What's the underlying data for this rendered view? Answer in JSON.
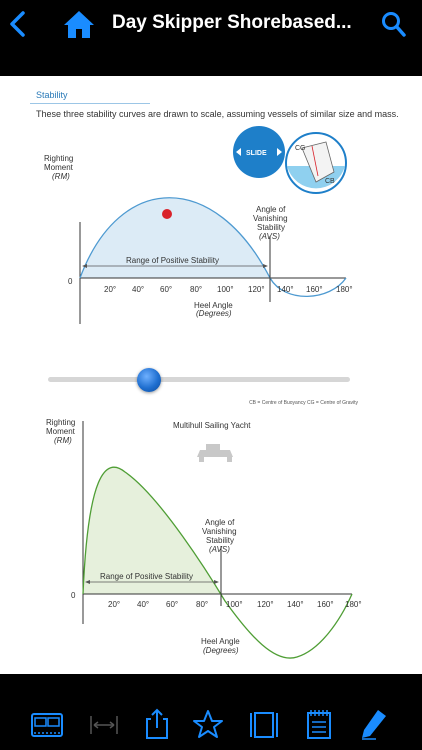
{
  "header": {
    "title": "Day Skipper Shorebased...",
    "back_icon": "chevron-left-icon",
    "home_icon": "home-icon",
    "search_icon": "search-icon",
    "accent": "#1a8cff"
  },
  "page": {
    "section_title": "Stability",
    "intro": "These three stability curves are drawn to scale, assuming vessels of similar size and mass."
  },
  "chart_top": {
    "y_label": "Righting",
    "y_label2": "Moment",
    "y_unit": "(RM)",
    "zero": "0",
    "x_ticks": [
      "20°",
      "40°",
      "60°",
      "80°",
      "100°",
      "120°",
      "140°",
      "160°",
      "180°"
    ],
    "x_label": "Heel Angle",
    "x_unit": "(Degrees)",
    "range_label": "Range of Positive Stability",
    "avs_label1": "Angle of",
    "avs_label2": "Vanishing",
    "avs_label3": "Stability",
    "avs_abbr": "(AVS)",
    "slide_label": "SLIDE",
    "cg_label": "CG",
    "cb_label": "CB",
    "fill_color": "#dcebf6",
    "line_color": "#4e9ad1",
    "marker_color": "#d9222a"
  },
  "slider": {
    "value_fraction": 0.32
  },
  "legend_note": "CB = Centre of Buoyancy CG = Centre of Gravity",
  "chart_bottom": {
    "y_label": "Righting",
    "y_label2": "Moment",
    "y_unit": "(RM)",
    "zero": "0",
    "vessel": "Multihull Sailing Yacht",
    "x_ticks": [
      "20°",
      "40°",
      "60°",
      "80°",
      "100°",
      "120°",
      "140°",
      "160°",
      "180°"
    ],
    "x_label": "Heel Angle",
    "x_unit": "(Degrees)",
    "range_label": "Range of Positive Stability",
    "avs_label1": "Angle of",
    "avs_label2": "Vanishing",
    "avs_label3": "Stability",
    "avs_abbr": "(AVS)",
    "fill_color": "#e6f0dc",
    "line_color": "#4f9e35"
  },
  "chart_data": [
    {
      "type": "area",
      "title": "",
      "xlabel": "Heel Angle (Degrees)",
      "ylabel": "Righting Moment (RM)",
      "x": [
        0,
        20,
        40,
        60,
        80,
        100,
        120,
        130,
        140,
        160,
        180
      ],
      "series": [
        {
          "values": [
            0,
            0.6,
            0.9,
            1.0,
            0.9,
            0.6,
            0.15,
            0,
            -0.18,
            -0.15,
            0
          ]
        }
      ],
      "xlim": [
        0,
        180
      ],
      "annotations": [
        "Range of Positive Stability",
        "Angle of Vanishing Stability (AVS)"
      ]
    },
    {
      "type": "area",
      "title": "Multihull Sailing Yacht",
      "xlabel": "Heel Angle (Degrees)",
      "ylabel": "Righting Moment (RM)",
      "x": [
        0,
        10,
        20,
        30,
        40,
        60,
        80,
        93,
        100,
        120,
        140,
        160,
        180
      ],
      "series": [
        {
          "values": [
            0,
            0.8,
            0.98,
            0.95,
            0.85,
            0.55,
            0.2,
            0,
            -0.15,
            -0.45,
            -0.6,
            -0.4,
            0
          ]
        }
      ],
      "xlim": [
        0,
        180
      ],
      "annotations": [
        "Range of Positive Stability",
        "Angle of Vanishing Stability (AVS)"
      ]
    }
  ],
  "toolbar": {
    "items": [
      "thumbnails-icon",
      "fit-width-icon",
      "share-icon",
      "bookmark-star-icon",
      "page-view-icon",
      "notes-icon",
      "annotate-pen-icon"
    ]
  }
}
